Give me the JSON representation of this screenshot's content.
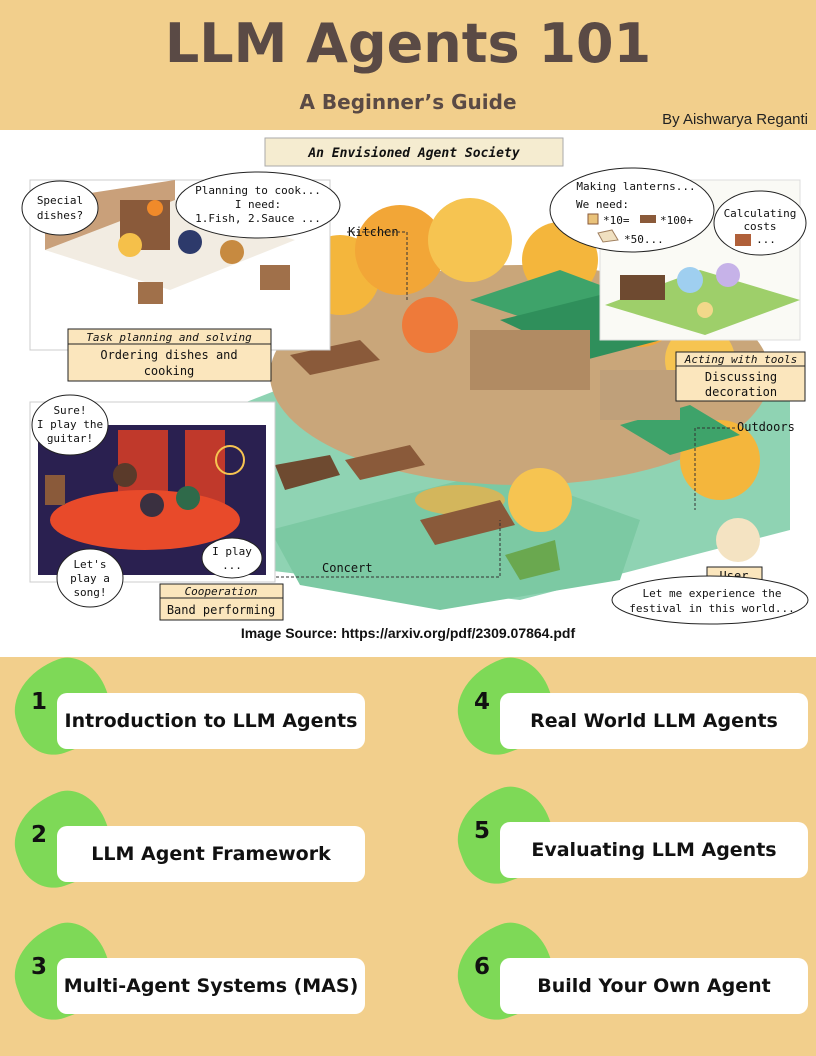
{
  "header": {
    "title": "LLM Agents 101",
    "subtitle": "A Beginner’s Guide",
    "author": "By Aishwarya Reganti"
  },
  "illustration": {
    "banner": "An Envisioned Agent Society",
    "places": {
      "kitchen": "Kitchen",
      "outdoors": "Outdoors",
      "concert": "Concert"
    },
    "kitchen_scene": {
      "bubble_left": [
        "Special",
        "dishes?"
      ],
      "bubble_right": [
        "Planning to cook...",
        "I need:",
        "1.Fish, 2.Sauce ..."
      ],
      "caption_title": "Task planning and solving",
      "caption_body": [
        "Ordering dishes and",
        "cooking"
      ]
    },
    "tools_scene": {
      "bubble_left": [
        "Making lanterns...",
        "We need:",
        "*10=",
        "*100+",
        "*50..."
      ],
      "bubble_right": [
        "Calculating",
        "costs",
        "..."
      ],
      "caption_title": "Acting with tools",
      "caption_body": [
        "Discussing",
        "decoration"
      ]
    },
    "concert_scene": {
      "bubble_top": [
        "Sure!",
        "I play the",
        "guitar!"
      ],
      "bubble_bottom_left": [
        "Let's",
        "play a",
        "song!"
      ],
      "bubble_bottom_right": [
        "I play",
        "..."
      ],
      "caption_title": "Cooperation",
      "caption_body": "Band performing"
    },
    "user_scene": {
      "label": "User",
      "bubble": [
        "Let me experience the",
        "festival in this world..."
      ]
    }
  },
  "source": "Image Source: https://arxiv.org/pdf/2309.07864.pdf",
  "toc": [
    {
      "num": "1",
      "label": "Introduction to LLM  Agents"
    },
    {
      "num": "4",
      "label": "Real World LLM Agents"
    },
    {
      "num": "2",
      "label": "LLM Agent Framework"
    },
    {
      "num": "5",
      "label": "Evaluating LLM Agents"
    },
    {
      "num": "3",
      "label": "Multi-Agent Systems (MAS)"
    },
    {
      "num": "6",
      "label": "Build Your Own Agent"
    }
  ],
  "colors": {
    "background": "#f2cf8c",
    "title": "#5a4a45",
    "blob": "#7ed957",
    "card": "#ffffff"
  }
}
